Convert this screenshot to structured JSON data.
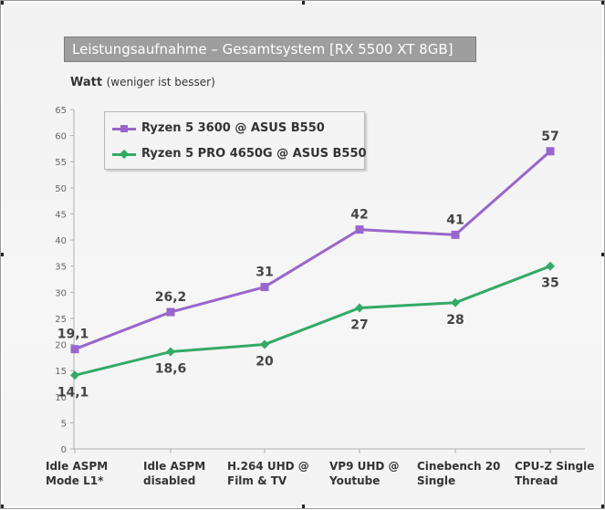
{
  "title": "Leistungsaufnahme – Gesamtsystem [RX 5500 XT 8GB]",
  "ylabel_main": "Watt",
  "ylabel_note": "(weniger ist besser)",
  "chart_data": {
    "type": "line",
    "title": "Leistungsaufnahme – Gesamtsystem [RX 5500 XT 8GB]",
    "ylabel": "Watt (weniger ist besser)",
    "xlabel": "",
    "categories": [
      "Idle ASPM Mode L1*",
      "Idle ASPM disabled",
      "H.264 UHD @ Film & TV",
      "VP9 UHD @ Youtube",
      "Cinebench 20 Single",
      "CPU-Z Single Thread"
    ],
    "category_lines": [
      [
        "Idle ASPM",
        "Mode L1*"
      ],
      [
        "Idle ASPM",
        "disabled"
      ],
      [
        "H.264 UHD @",
        "Film & TV"
      ],
      [
        "VP9 UHD @",
        "Youtube"
      ],
      [
        "Cinebench 20",
        "Single"
      ],
      [
        "CPU-Z Single",
        "Thread"
      ]
    ],
    "ylim": [
      0,
      65
    ],
    "yticks": [
      "0",
      "5",
      "10",
      "15",
      "20",
      "25",
      "30",
      "35",
      "40",
      "45",
      "50",
      "55",
      "60",
      "65"
    ],
    "grid": false,
    "legend_position": "top-left",
    "series": [
      {
        "name": "Ryzen 5 3600 @ ASUS B550",
        "color": "#9966cc",
        "marker": "square",
        "values": [
          19.1,
          26.2,
          31,
          42,
          41,
          57
        ],
        "labels": [
          "19,1",
          "26,2",
          "31",
          "42",
          "41",
          "57"
        ],
        "label_side": "above"
      },
      {
        "name": "Ryzen 5 PRO 4650G @ ASUS B550",
        "color": "#33aa66",
        "marker": "diamond",
        "values": [
          14.1,
          18.6,
          20,
          27,
          28,
          35
        ],
        "labels": [
          "14,1",
          "18,6",
          "20",
          "27",
          "28",
          "35"
        ],
        "label_side": "below"
      }
    ]
  }
}
